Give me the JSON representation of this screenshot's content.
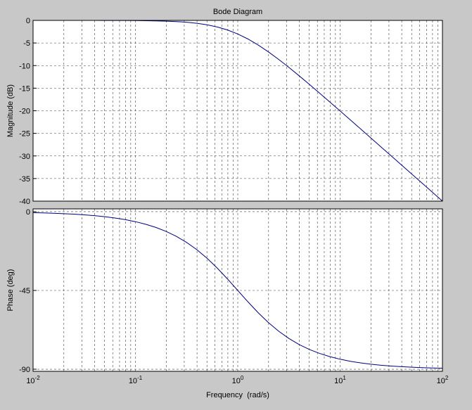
{
  "chart_data": [
    {
      "type": "line",
      "title": "Bode Diagram",
      "ylabel": "Magnitude (dB)",
      "x": [
        0.01,
        0.012589,
        0.015849,
        0.019953,
        0.025119,
        0.031623,
        0.039811,
        0.050119,
        0.063096,
        0.079433,
        0.1,
        0.125893,
        0.158489,
        0.199526,
        0.251189,
        0.316228,
        0.398107,
        0.501187,
        0.630957,
        0.794328,
        1,
        1.258925,
        1.584893,
        1.995262,
        2.511886,
        3.162278,
        3.981072,
        5.011872,
        6.309573,
        7.943282,
        10,
        12.589254,
        15.848932,
        19.952623,
        25.118864,
        31.622777,
        39.810717,
        50.118723,
        63.095734,
        79.432823,
        100
      ],
      "series": [
        {
          "name": "Magnitude",
          "color": "#00007f",
          "values": [
            -0.0004,
            -0.0007,
            -0.0011,
            -0.0017,
            -0.0027,
            -0.0043,
            -0.0069,
            -0.0109,
            -0.0173,
            -0.0273,
            -0.0432,
            -0.0683,
            -0.1077,
            -0.1695,
            -0.2658,
            -0.4139,
            -0.6391,
            -0.9732,
            -1.4555,
            -2.1244,
            -3.0103,
            -4.1245,
            -5.4555,
            -6.9732,
            -8.6391,
            -10.4139,
            -12.2658,
            -14.1695,
            -16.1077,
            -18.0683,
            -20.0432,
            -22.0273,
            -24.0173,
            -26.0109,
            -28.0069,
            -30.0043,
            -32.0027,
            -34.0017,
            -36.0011,
            -38.0007,
            -40.0004
          ]
        }
      ],
      "log_x": true,
      "grid": true,
      "xlim": [
        0.01,
        100
      ],
      "xticks": [
        0.01,
        0.1,
        1,
        10,
        100
      ],
      "xminorticks": [
        0.02,
        0.03,
        0.04,
        0.05,
        0.06,
        0.07,
        0.08,
        0.09,
        0.2,
        0.3,
        0.4,
        0.5,
        0.6,
        0.7,
        0.8,
        0.9,
        2,
        3,
        4,
        5,
        6,
        7,
        8,
        9,
        20,
        30,
        40,
        50,
        60,
        70,
        80,
        90
      ],
      "ylim": [
        -40,
        0
      ],
      "yticks": [
        0,
        -5,
        -10,
        -15,
        -20,
        -25,
        -30,
        -35,
        -40
      ]
    },
    {
      "type": "line",
      "ylabel": "Phase (deg)",
      "xlabel": "Frequency  (rad/s)",
      "x": [
        0.01,
        0.012589,
        0.015849,
        0.019953,
        0.025119,
        0.031623,
        0.039811,
        0.050119,
        0.063096,
        0.079433,
        0.1,
        0.125893,
        0.158489,
        0.199526,
        0.251189,
        0.316228,
        0.398107,
        0.501187,
        0.630957,
        0.794328,
        1,
        1.258925,
        1.584893,
        1.995262,
        2.511886,
        3.162278,
        3.981072,
        5.011872,
        6.309573,
        7.943282,
        10,
        12.589254,
        15.848932,
        19.952623,
        25.118864,
        31.622777,
        39.810717,
        50.118723,
        63.095734,
        79.432823,
        100
      ],
      "series": [
        {
          "name": "Phase",
          "color": "#00007f",
          "values": [
            -0.573,
            -0.721,
            -0.908,
            -1.143,
            -1.439,
            -1.811,
            -2.28,
            -2.869,
            -3.61,
            -4.542,
            -5.711,
            -7.176,
            -9.006,
            -11.284,
            -14.101,
            -17.548,
            -21.705,
            -26.619,
            -32.248,
            -38.46,
            -45,
            -51.54,
            -57.752,
            -63.381,
            -68.295,
            -72.452,
            -75.899,
            -78.716,
            -80.994,
            -82.824,
            -84.289,
            -85.458,
            -86.39,
            -87.131,
            -87.72,
            -88.189,
            -88.561,
            -88.857,
            -89.092,
            -89.279,
            -89.427
          ]
        }
      ],
      "log_x": true,
      "grid": true,
      "xlim": [
        0.01,
        100
      ],
      "xticks": [
        {
          "value": 0.01,
          "label": "10^-2"
        },
        {
          "value": 0.1,
          "label": "10^-1"
        },
        {
          "value": 1,
          "label": "10^0"
        },
        {
          "value": 10,
          "label": "10^1"
        },
        {
          "value": 100,
          "label": "10^2"
        }
      ],
      "xminorticks": [
        0.02,
        0.03,
        0.04,
        0.05,
        0.06,
        0.07,
        0.08,
        0.09,
        0.2,
        0.3,
        0.4,
        0.5,
        0.6,
        0.7,
        0.8,
        0.9,
        2,
        3,
        4,
        5,
        6,
        7,
        8,
        9,
        20,
        30,
        40,
        50,
        60,
        70,
        80,
        90
      ],
      "ylim": [
        -91.2,
        1.6
      ],
      "yticks": [
        0,
        -45,
        -90
      ]
    }
  ]
}
